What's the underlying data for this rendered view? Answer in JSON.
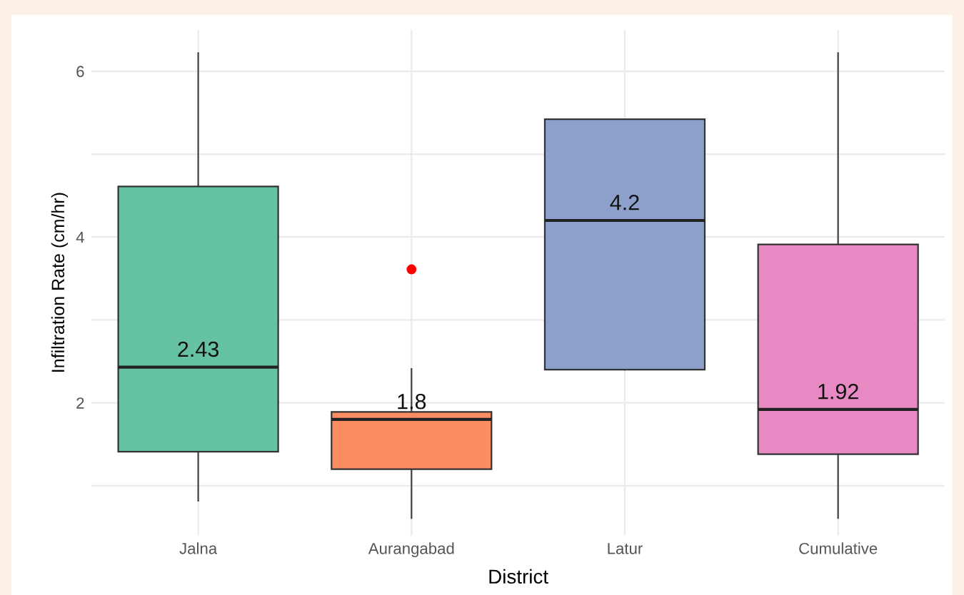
{
  "chart_data": {
    "type": "box",
    "xlabel": "District",
    "ylabel": "Infiltration Rate (cm/hr)",
    "categories": [
      "Jalna",
      "Aurangabad",
      "Latur",
      "Cumulative"
    ],
    "colors": [
      "#66c2a5",
      "#fc8d62",
      "#8da0cb",
      "#e78ac3"
    ],
    "boxes": [
      {
        "low": 0.82,
        "q1": 1.41,
        "median": 2.43,
        "q3": 4.61,
        "high": 6.22
      },
      {
        "low": 0.61,
        "q1": 1.2,
        "median": 1.8,
        "q3": 1.89,
        "high": 2.41,
        "outliers": [
          3.61
        ]
      },
      {
        "low": 2.4,
        "q1": 2.4,
        "median": 4.2,
        "q3": 5.42,
        "high": 5.42
      },
      {
        "low": 0.61,
        "q1": 1.38,
        "median": 1.92,
        "q3": 3.91,
        "high": 6.22
      }
    ],
    "annotations": [
      {
        "text": "2.43",
        "x": "Jalna",
        "y": 2.43
      },
      {
        "text": "1.8",
        "x": "Aurangabad",
        "y": 1.8
      },
      {
        "text": "4.2",
        "x": "Latur",
        "y": 4.2
      },
      {
        "text": "1.92",
        "x": "Cumulative",
        "y": 1.92
      }
    ],
    "ylim": [
      0.4,
      6.5
    ],
    "yticks": [
      {
        "value": 1,
        "label": null
      },
      2,
      {
        "value": 3,
        "label": null
      },
      4,
      {
        "value": 5,
        "label": null
      },
      6
    ],
    "grid": true
  }
}
